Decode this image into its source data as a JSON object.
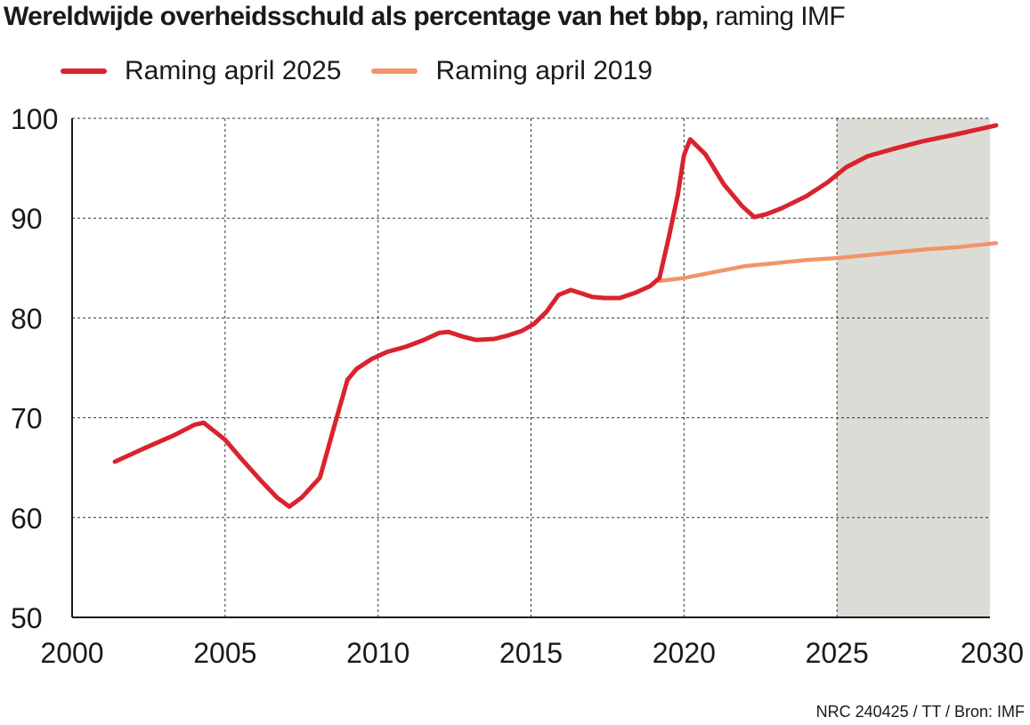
{
  "chart_data": {
    "type": "line",
    "title_bold": "Wereldwijde overheidsschuld als percentage van het bbp,",
    "title_normal": " raming IMF",
    "x_ticks": [
      "2000",
      "2005",
      "2010",
      "2015",
      "2020",
      "2025",
      "2030"
    ],
    "y_ticks": [
      "50",
      "60",
      "70",
      "80",
      "90",
      "100"
    ],
    "xlim": [
      2000,
      2030
    ],
    "ylim": [
      50,
      100
    ],
    "grid": true,
    "forecast_shade": {
      "from": 2025,
      "to": 2030,
      "color": "#dcdcd7"
    },
    "series": [
      {
        "name": "Raming april 2025",
        "color": "#d9232e",
        "x": [
          2001.4,
          2002.4,
          2003.3,
          2004.0,
          2004.3,
          2005.0,
          2005.5,
          2006.2,
          2006.7,
          2007.1,
          2007.5,
          2008.1,
          2008.6,
          2009.0,
          2009.3,
          2009.8,
          2010.3,
          2010.9,
          2011.5,
          2012.0,
          2012.3,
          2012.8,
          2013.2,
          2013.8,
          2014.2,
          2014.7,
          2015.1,
          2015.5,
          2015.9,
          2016.3,
          2016.6,
          2017.0,
          2017.4,
          2017.9,
          2018.4,
          2018.9,
          2019.2,
          2019.5,
          2019.8,
          2020.0,
          2020.2,
          2020.7,
          2021.3,
          2021.9,
          2022.3,
          2022.7,
          2023.2,
          2024.0,
          2024.7,
          2025.3,
          2026.0,
          2026.8,
          2027.8,
          2028.9,
          2030.2
        ],
        "values": [
          65.6,
          67.0,
          68.2,
          69.3,
          69.5,
          67.8,
          66.0,
          63.6,
          62.0,
          61.1,
          62.0,
          64.0,
          69.5,
          73.8,
          74.9,
          75.9,
          76.6,
          77.1,
          77.8,
          78.5,
          78.6,
          78.1,
          77.8,
          77.9,
          78.2,
          78.7,
          79.4,
          80.6,
          82.3,
          82.8,
          82.5,
          82.1,
          82.0,
          82.0,
          82.5,
          83.2,
          84.0,
          88.0,
          92.4,
          96.3,
          97.9,
          96.4,
          93.4,
          91.2,
          90.1,
          90.4,
          91.0,
          92.2,
          93.6,
          95.1,
          96.2,
          96.9,
          97.7,
          98.4,
          99.3
        ]
      },
      {
        "name": "Raming april 2019",
        "color": "#f0956a",
        "x": [
          2019.2,
          2020.0,
          2021.0,
          2022.0,
          2023.0,
          2024.0,
          2025.0,
          2026.0,
          2027.0,
          2028.0,
          2029.0,
          2030.2
        ],
        "values": [
          83.7,
          84.0,
          84.6,
          85.2,
          85.5,
          85.8,
          86.0,
          86.3,
          86.6,
          86.9,
          87.1,
          87.5
        ]
      }
    ]
  },
  "footer": "NRC 240425 / TT / Bron: IMF"
}
